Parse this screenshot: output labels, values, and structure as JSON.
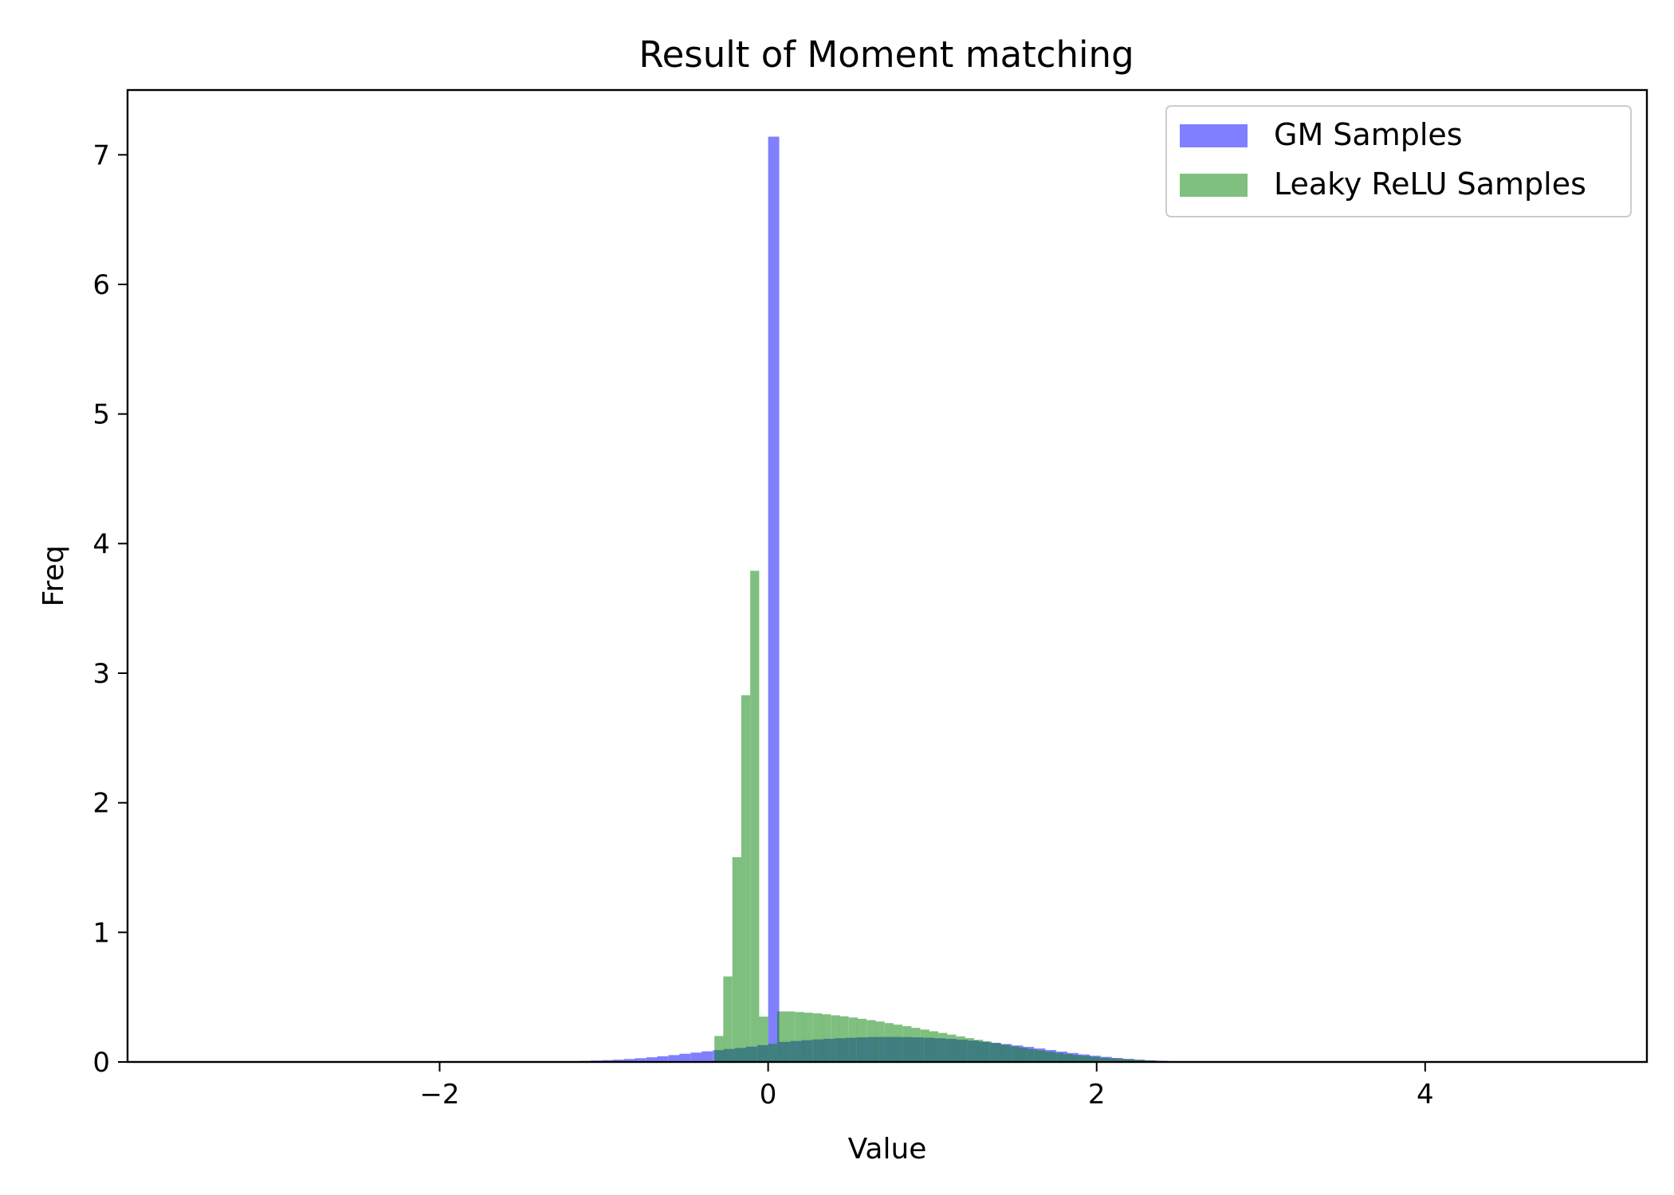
{
  "chart_data": {
    "type": "bar",
    "title": "Result of Moment matching",
    "xlabel": "Value",
    "ylabel": "Freq",
    "xlim": [
      -3.9,
      5.35
    ],
    "ylim": [
      0,
      7.5
    ],
    "xticks": [
      -2,
      0,
      2,
      4
    ],
    "xtick_labels": [
      "−2",
      "0",
      "2",
      "4"
    ],
    "yticks": [
      0,
      1,
      2,
      3,
      4,
      5,
      6,
      7
    ],
    "ytick_labels": [
      "0",
      "1",
      "2",
      "3",
      "4",
      "5",
      "6",
      "7"
    ],
    "grid": false,
    "legend_position": "top-right",
    "series": [
      {
        "name": "GM Samples",
        "color": "#0000ff",
        "opacity": 0.5,
        "bin_width": 0.0675,
        "bins": [
          [
            -1.35,
            0.003
          ],
          [
            -1.282,
            0.004
          ],
          [
            -1.215,
            0.006
          ],
          [
            -1.147,
            0.008
          ],
          [
            -1.08,
            0.011
          ],
          [
            -1.012,
            0.014
          ],
          [
            -0.945,
            0.018
          ],
          [
            -0.877,
            0.023
          ],
          [
            -0.81,
            0.029
          ],
          [
            -0.742,
            0.036
          ],
          [
            -0.675,
            0.044
          ],
          [
            -0.607,
            0.053
          ],
          [
            -0.54,
            0.063
          ],
          [
            -0.472,
            0.072
          ],
          [
            -0.405,
            0.082
          ],
          [
            -0.337,
            0.091
          ],
          [
            -0.27,
            0.1
          ],
          [
            -0.202,
            0.108
          ],
          [
            -0.135,
            0.118
          ],
          [
            -0.067,
            0.13
          ],
          [
            0.0,
            7.14
          ],
          [
            0.067,
            0.155
          ],
          [
            0.135,
            0.162
          ],
          [
            0.202,
            0.168
          ],
          [
            0.27,
            0.174
          ],
          [
            0.337,
            0.179
          ],
          [
            0.405,
            0.183
          ],
          [
            0.472,
            0.187
          ],
          [
            0.54,
            0.19
          ],
          [
            0.607,
            0.192
          ],
          [
            0.675,
            0.193
          ],
          [
            0.742,
            0.193
          ],
          [
            0.81,
            0.192
          ],
          [
            0.877,
            0.19
          ],
          [
            0.945,
            0.187
          ],
          [
            1.012,
            0.183
          ],
          [
            1.08,
            0.178
          ],
          [
            1.147,
            0.172
          ],
          [
            1.215,
            0.165
          ],
          [
            1.282,
            0.157
          ],
          [
            1.35,
            0.148
          ],
          [
            1.417,
            0.138
          ],
          [
            1.485,
            0.127
          ],
          [
            1.552,
            0.116
          ],
          [
            1.62,
            0.104
          ],
          [
            1.687,
            0.092
          ],
          [
            1.755,
            0.08
          ],
          [
            1.822,
            0.069
          ],
          [
            1.89,
            0.058
          ],
          [
            1.957,
            0.048
          ],
          [
            2.025,
            0.039
          ],
          [
            2.092,
            0.031
          ],
          [
            2.16,
            0.024
          ],
          [
            2.227,
            0.018
          ],
          [
            2.295,
            0.013
          ],
          [
            2.362,
            0.009
          ],
          [
            2.43,
            0.006
          ],
          [
            2.497,
            0.004
          ],
          [
            2.565,
            0.002
          ],
          [
            2.632,
            0.001
          ]
        ]
      },
      {
        "name": "Leaky ReLU Samples",
        "color": "#008000",
        "opacity": 0.5,
        "bin_width": 0.0545,
        "bins": [
          [
            -0.327,
            0.2
          ],
          [
            -0.273,
            0.66
          ],
          [
            -0.218,
            1.58
          ],
          [
            -0.164,
            2.83
          ],
          [
            -0.109,
            3.79
          ],
          [
            -0.055,
            0.35
          ],
          [
            0.0,
            0.14
          ],
          [
            0.055,
            0.39
          ],
          [
            0.109,
            0.39
          ],
          [
            0.164,
            0.385
          ],
          [
            0.218,
            0.38
          ],
          [
            0.273,
            0.375
          ],
          [
            0.327,
            0.368
          ],
          [
            0.382,
            0.36
          ],
          [
            0.436,
            0.352
          ],
          [
            0.491,
            0.343
          ],
          [
            0.545,
            0.333
          ],
          [
            0.6,
            0.323
          ],
          [
            0.654,
            0.312
          ],
          [
            0.709,
            0.3
          ],
          [
            0.763,
            0.288
          ],
          [
            0.818,
            0.276
          ],
          [
            0.872,
            0.263
          ],
          [
            0.927,
            0.25
          ],
          [
            0.981,
            0.237
          ],
          [
            1.036,
            0.224
          ],
          [
            1.09,
            0.211
          ],
          [
            1.145,
            0.197
          ],
          [
            1.199,
            0.184
          ],
          [
            1.254,
            0.171
          ],
          [
            1.308,
            0.158
          ],
          [
            1.363,
            0.145
          ],
          [
            1.417,
            0.133
          ],
          [
            1.472,
            0.121
          ],
          [
            1.526,
            0.11
          ],
          [
            1.581,
            0.099
          ],
          [
            1.635,
            0.089
          ],
          [
            1.69,
            0.079
          ],
          [
            1.744,
            0.07
          ],
          [
            1.799,
            0.061
          ],
          [
            1.853,
            0.053
          ],
          [
            1.908,
            0.046
          ],
          [
            1.962,
            0.039
          ],
          [
            2.017,
            0.033
          ],
          [
            2.071,
            0.028
          ],
          [
            2.126,
            0.023
          ],
          [
            2.18,
            0.019
          ],
          [
            2.235,
            0.015
          ],
          [
            2.289,
            0.012
          ],
          [
            2.344,
            0.009
          ],
          [
            2.398,
            0.007
          ],
          [
            2.453,
            0.005
          ],
          [
            2.507,
            0.004
          ],
          [
            2.562,
            0.003
          ],
          [
            2.616,
            0.002
          ],
          [
            2.671,
            0.001
          ]
        ]
      }
    ]
  }
}
